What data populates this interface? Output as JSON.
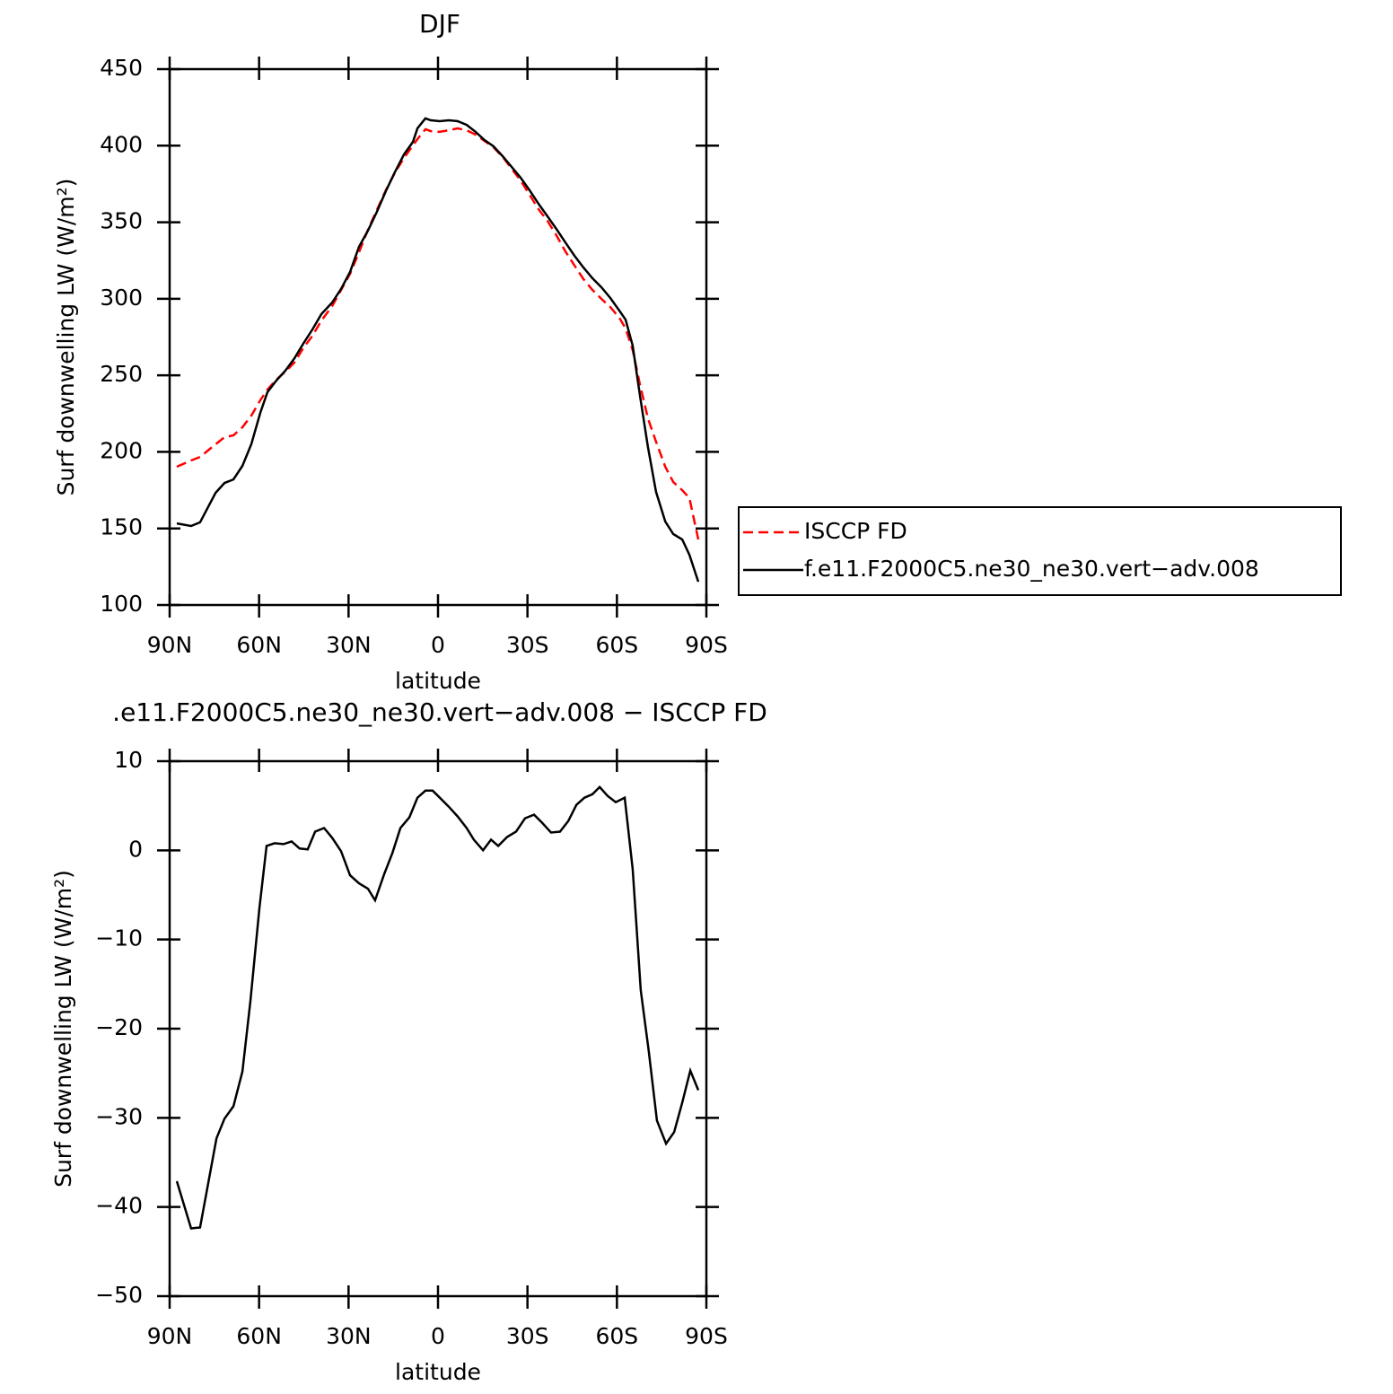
{
  "chart_data": [
    {
      "type": "line",
      "title": "DJF",
      "xlabel": "latitude",
      "ylabel": "Surf downwelling LW (W/m²)",
      "xlim": [
        90,
        -90
      ],
      "xticks": [
        {
          "value": 90,
          "label": "90N"
        },
        {
          "value": 60,
          "label": "60N"
        },
        {
          "value": 30,
          "label": "30N"
        },
        0,
        {
          "value": -30,
          "label": "30S"
        },
        {
          "value": -60,
          "label": "60S"
        },
        {
          "value": -90,
          "label": "90S"
        }
      ],
      "ylim": [
        100,
        450
      ],
      "yticks": [
        100,
        150,
        200,
        250,
        300,
        350,
        400,
        450
      ],
      "legend": "right",
      "x": [
        87.6,
        82.8,
        79.8,
        74.6,
        71.6,
        68.6,
        65.6,
        62.6,
        59.6,
        57.2,
        54.2,
        51.2,
        48.2,
        45.2,
        42.1,
        39.1,
        35.5,
        32.5,
        29.5,
        26.5,
        23.5,
        20.5,
        17.5,
        14.5,
        11.4,
        8.4,
        6.9,
        4.2,
        2.4,
        -0.6,
        -3.6,
        -6.6,
        -9.6,
        -12.6,
        -15.6,
        -18.6,
        -21.7,
        -24.7,
        -27.7,
        -30.7,
        -33.7,
        -36.7,
        -39.7,
        -42.7,
        -45.8,
        -48.8,
        -51.8,
        -54.8,
        -57.8,
        -60.8,
        -62.9,
        -65.3,
        -67.7,
        -70.4,
        -73.1,
        -76.2,
        -78.9,
        -81.9,
        -84.3,
        -87.3
      ],
      "series": [
        {
          "name": "ISCCP FD",
          "color": "#ff0000",
          "style": "dashed",
          "values": [
            190.3,
            194.4,
            196.7,
            205,
            209.6,
            210.8,
            216.1,
            223.7,
            233.7,
            240.7,
            247.2,
            252.4,
            258.3,
            267.7,
            275.9,
            285.8,
            295.2,
            305.8,
            316.3,
            330.4,
            345,
            358,
            370.9,
            382.1,
            392,
            400.2,
            404.3,
            410.7,
            409.5,
            409,
            410.1,
            411.3,
            410.1,
            407.2,
            403.1,
            399,
            392.6,
            384.9,
            377.3,
            367.9,
            358.5,
            350.9,
            341.5,
            331,
            321.6,
            312.8,
            305.8,
            299.9,
            294.6,
            287.6,
            280.6,
            266.5,
            244.2,
            221.9,
            206.7,
            190.3,
            180.3,
            175,
            169.8,
            142.8
          ]
        },
        {
          "name": "f.e11.F2000C5.ne30_ne30.vert−adv.008",
          "color": "#000000",
          "style": "solid",
          "values": [
            153.3,
            151.6,
            154,
            173.3,
            179.7,
            182,
            190.9,
            205,
            225.5,
            239,
            246.6,
            253,
            261,
            270.6,
            280,
            290,
            297.6,
            306.4,
            317.5,
            334,
            344.5,
            356.8,
            370.3,
            382.6,
            394.3,
            402.5,
            411.3,
            417.8,
            416.6,
            416,
            416.6,
            416,
            413.6,
            409,
            403.7,
            399.6,
            393.1,
            386.1,
            379.1,
            370.9,
            362,
            353.9,
            345.6,
            336.8,
            328,
            320.4,
            313.4,
            307.5,
            300.5,
            292.3,
            286.4,
            269.4,
            237.2,
            203.2,
            173.9,
            154.5,
            146.3,
            142.8,
            132.8,
            115.2
          ]
        }
      ]
    },
    {
      "type": "line",
      "title": ".e11.F2000C5.ne30_ne30.vert−adv.008 − ISCCP FD",
      "xlabel": "latitude",
      "ylabel": "Surf downwelling LW (W/m²)",
      "xlim": [
        90,
        -90
      ],
      "xticks": [
        {
          "value": 90,
          "label": "90N"
        },
        {
          "value": 60,
          "label": "60N"
        },
        {
          "value": 30,
          "label": "30N"
        },
        0,
        {
          "value": -30,
          "label": "30S"
        },
        {
          "value": -60,
          "label": "60S"
        },
        {
          "value": -90,
          "label": "90S"
        }
      ],
      "ylim": [
        -50,
        10
      ],
      "yticks": [
        {
          "value": -50,
          "label": "−50"
        },
        {
          "value": -40,
          "label": "−40"
        },
        {
          "value": -30,
          "label": "−30"
        },
        {
          "value": -20,
          "label": "−20"
        },
        {
          "value": -10,
          "label": "−10"
        },
        0,
        10
      ],
      "x": [
        87.6,
        82.8,
        79.8,
        74.3,
        71.6,
        68.6,
        65.6,
        62.9,
        59.9,
        57.5,
        54.8,
        51.8,
        49.1,
        46.4,
        43.7,
        41.2,
        38.2,
        35.5,
        32.5,
        29.5,
        26.5,
        23.5,
        21.1,
        18.1,
        15.3,
        12.6,
        9.6,
        6.9,
        4.2,
        1.8,
        -0.6,
        -3.6,
        -6.6,
        -9.6,
        -12.0,
        -15.1,
        -17.8,
        -20.2,
        -23.2,
        -26.2,
        -29.2,
        -32.2,
        -34.9,
        -37.9,
        -40.9,
        -43.7,
        -46.4,
        -49.1,
        -51.8,
        -54.2,
        -56.9,
        -59.6,
        -62.6,
        -65.3,
        -68.0,
        -70.7,
        -73.4,
        -76.5,
        -79.2,
        -81.9,
        -84.6,
        -87.3
      ],
      "series": [
        {
          "color": "#000000",
          "style": "solid",
          "values": [
            -37.1,
            -42.4,
            -42.3,
            -32.3,
            -30.1,
            -28.7,
            -24.8,
            -16.9,
            -6.5,
            0.5,
            0.8,
            0.7,
            1.0,
            0.2,
            0.1,
            2.1,
            2.5,
            1.4,
            -0.1,
            -2.8,
            -3.7,
            -4.3,
            -5.6,
            -2.7,
            -0.3,
            2.5,
            3.7,
            5.9,
            6.7,
            6.7,
            5.9,
            4.9,
            3.8,
            2.5,
            1.2,
            0.0,
            1.2,
            0.5,
            1.5,
            2.1,
            3.6,
            4.0,
            3.1,
            2.0,
            2.1,
            3.3,
            5.1,
            5.9,
            6.3,
            7.1,
            6.1,
            5.4,
            5.9,
            -2.1,
            -15.7,
            -22.6,
            -30.3,
            -32.9,
            -31.6,
            -28.3,
            -24.7,
            -26.9
          ]
        }
      ]
    }
  ]
}
